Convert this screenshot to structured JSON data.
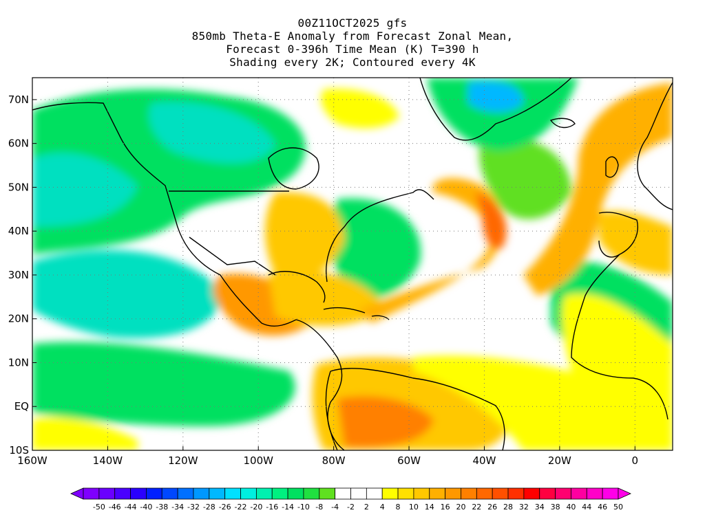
{
  "title": {
    "line1": "00Z11OCT2025 gfs",
    "line2": "850mb Theta-E Anomaly from Forecast Zonal Mean,",
    "line3": "Forecast 0-396h Time Mean (K) T=390 h",
    "line4": "Shading every 2K; Contoured every 4K"
  },
  "map": {
    "lon_range": [
      -160,
      10
    ],
    "lat_range": [
      -10,
      75
    ],
    "lat_ticks": [
      {
        "lat": 70,
        "label": "70N"
      },
      {
        "lat": 60,
        "label": "60N"
      },
      {
        "lat": 50,
        "label": "50N"
      },
      {
        "lat": 40,
        "label": "40N"
      },
      {
        "lat": 30,
        "label": "30N"
      },
      {
        "lat": 20,
        "label": "20N"
      },
      {
        "lat": 10,
        "label": "10N"
      },
      {
        "lat": 0,
        "label": "EQ"
      },
      {
        "lat": -10,
        "label": "10S"
      }
    ],
    "lon_ticks": [
      {
        "lon": -160,
        "label": "160W"
      },
      {
        "lon": -140,
        "label": "140W"
      },
      {
        "lon": -120,
        "label": "120W"
      },
      {
        "lon": -100,
        "label": "100W"
      },
      {
        "lon": -80,
        "label": "80W"
      },
      {
        "lon": -60,
        "label": "60W"
      },
      {
        "lon": -40,
        "label": "40W"
      },
      {
        "lon": -20,
        "label": "20W"
      },
      {
        "lon": 0,
        "label": "0"
      }
    ]
  },
  "colorbar": {
    "colors": [
      "#7f00ff",
      "#6a00ff",
      "#4a00ff",
      "#2a00ff",
      "#0020ff",
      "#0048ff",
      "#0070ff",
      "#0098ff",
      "#00b8ff",
      "#00e0ff",
      "#00f0e0",
      "#00f0b0",
      "#00f080",
      "#00e060",
      "#20e040",
      "#60e020",
      "#ffffff",
      "#ffffff",
      "#ffffff",
      "#ffff00",
      "#ffe000",
      "#ffc800",
      "#ffb000",
      "#ff9800",
      "#ff8000",
      "#ff6800",
      "#ff5000",
      "#ff3000",
      "#ff0000",
      "#ff0040",
      "#ff0070",
      "#ff00a0",
      "#ff00c8",
      "#ff00e8"
    ],
    "labels": [
      "-50",
      "-46",
      "-44",
      "-40",
      "-38",
      "-34",
      "-32",
      "-28",
      "-26",
      "-22",
      "-20",
      "-16",
      "-14",
      "-10",
      "-8",
      "-4",
      "-2",
      "2",
      "4",
      "8",
      "10",
      "14",
      "16",
      "20",
      "22",
      "26",
      "28",
      "32",
      "34",
      "38",
      "40",
      "44",
      "46",
      "50"
    ]
  },
  "field_colors": {
    "cold_strong": "#00b8ff",
    "cold": "#00e0c0",
    "cool": "#00e060",
    "cool_light": "#60e020",
    "neutral": "#ffffff",
    "warm_light": "#ffff00",
    "warm": "#ffc800",
    "warm_strong": "#ff9800",
    "hot": "#ff6800",
    "hotter": "#ff3000"
  }
}
